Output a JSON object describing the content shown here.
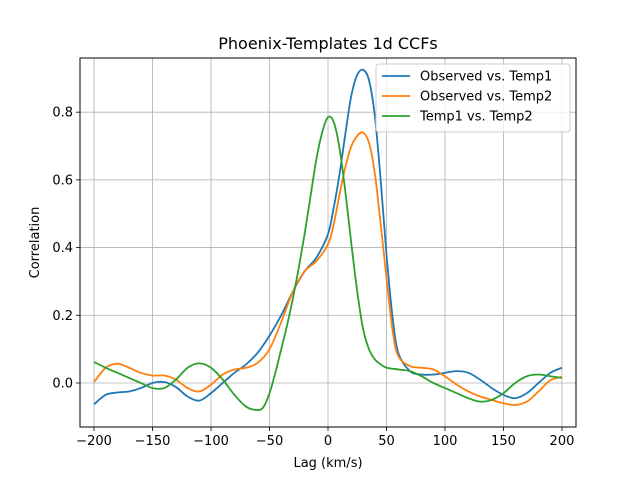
{
  "chart_data": {
    "type": "line",
    "title": "Phoenix-Templates 1d CCFs",
    "xlabel": "Lag (km/s)",
    "ylabel": "Correlation",
    "xlim": [
      -212,
      212
    ],
    "ylim": [
      -0.13,
      0.96
    ],
    "xticks": [
      -200,
      -150,
      -100,
      -50,
      0,
      50,
      100,
      150,
      200
    ],
    "yticks": [
      0.0,
      0.2,
      0.4,
      0.6,
      0.8
    ],
    "xtick_labels": [
      "−200",
      "−150",
      "−100",
      "−50",
      "0",
      "50",
      "100",
      "150",
      "200"
    ],
    "ytick_labels": [
      "0.0",
      "0.2",
      "0.4",
      "0.6",
      "0.8"
    ],
    "grid": true,
    "legend_position": "top-right",
    "series": [
      {
        "name": "Observed vs. Temp1",
        "color": "#1f77b4",
        "x": [
          -200,
          -190,
          -180,
          -170,
          -160,
          -150,
          -140,
          -130,
          -120,
          -110,
          -100,
          -90,
          -80,
          -70,
          -60,
          -50,
          -40,
          -30,
          -20,
          -10,
          0,
          5,
          10,
          15,
          20,
          25,
          30,
          35,
          40,
          45,
          50,
          55,
          60,
          70,
          80,
          90,
          100,
          110,
          120,
          130,
          140,
          150,
          160,
          170,
          180,
          190,
          200
        ],
        "y": [
          -0.063,
          -0.035,
          -0.028,
          -0.025,
          -0.015,
          0.0,
          0.003,
          -0.012,
          -0.04,
          -0.052,
          -0.03,
          0.0,
          0.03,
          0.055,
          0.09,
          0.14,
          0.2,
          0.27,
          0.33,
          0.37,
          0.44,
          0.52,
          0.62,
          0.74,
          0.85,
          0.91,
          0.925,
          0.895,
          0.79,
          0.6,
          0.38,
          0.2,
          0.09,
          0.035,
          0.025,
          0.025,
          0.03,
          0.035,
          0.03,
          0.01,
          -0.015,
          -0.035,
          -0.045,
          -0.03,
          0.0,
          0.03,
          0.045
        ]
      },
      {
        "name": "Observed vs. Temp2",
        "color": "#ff7f0e",
        "x": [
          -200,
          -190,
          -180,
          -170,
          -160,
          -150,
          -140,
          -130,
          -120,
          -110,
          -100,
          -90,
          -80,
          -70,
          -60,
          -50,
          -40,
          -30,
          -20,
          -10,
          0,
          5,
          10,
          15,
          20,
          25,
          30,
          35,
          40,
          45,
          50,
          55,
          60,
          70,
          80,
          90,
          100,
          110,
          120,
          130,
          140,
          150,
          160,
          170,
          180,
          190,
          200
        ],
        "y": [
          0.003,
          0.045,
          0.057,
          0.045,
          0.03,
          0.022,
          0.022,
          0.01,
          -0.015,
          -0.025,
          -0.005,
          0.025,
          0.04,
          0.045,
          0.06,
          0.1,
          0.18,
          0.27,
          0.33,
          0.36,
          0.41,
          0.47,
          0.56,
          0.64,
          0.7,
          0.73,
          0.74,
          0.71,
          0.62,
          0.47,
          0.31,
          0.16,
          0.08,
          0.05,
          0.045,
          0.04,
          0.02,
          -0.005,
          -0.025,
          -0.04,
          -0.05,
          -0.06,
          -0.065,
          -0.055,
          -0.025,
          0.008,
          0.018
        ]
      },
      {
        "name": "Temp1 vs. Temp2",
        "color": "#2ca02c",
        "x": [
          -200,
          -190,
          -180,
          -170,
          -160,
          -150,
          -140,
          -130,
          -120,
          -110,
          -100,
          -90,
          -80,
          -70,
          -60,
          -55,
          -50,
          -45,
          -40,
          -35,
          -30,
          -25,
          -20,
          -15,
          -10,
          -5,
          0,
          5,
          10,
          15,
          20,
          25,
          30,
          35,
          40,
          45,
          50,
          60,
          70,
          80,
          90,
          100,
          110,
          120,
          130,
          140,
          150,
          160,
          170,
          180,
          190,
          200
        ],
        "y": [
          0.062,
          0.045,
          0.03,
          0.015,
          0.0,
          -0.015,
          -0.015,
          0.01,
          0.045,
          0.058,
          0.045,
          0.01,
          -0.035,
          -0.07,
          -0.08,
          -0.07,
          -0.03,
          0.03,
          0.1,
          0.17,
          0.25,
          0.34,
          0.44,
          0.55,
          0.66,
          0.74,
          0.785,
          0.77,
          0.69,
          0.56,
          0.41,
          0.27,
          0.16,
          0.1,
          0.07,
          0.055,
          0.045,
          0.04,
          0.035,
          0.02,
          0.0,
          -0.015,
          -0.03,
          -0.045,
          -0.055,
          -0.05,
          -0.03,
          0.0,
          0.02,
          0.025,
          0.02,
          0.015
        ]
      }
    ]
  }
}
